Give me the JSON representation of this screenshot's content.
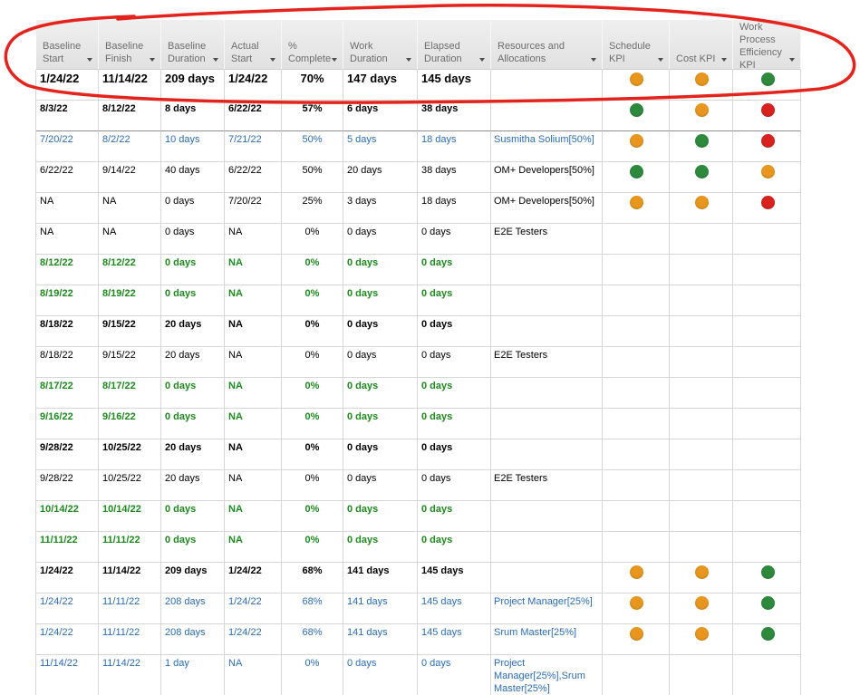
{
  "columns": [
    "Baseline Start",
    "Baseline Finish",
    "Baseline Duration",
    "Actual Start",
    "% Complete",
    "Work Duration",
    "Elapsed Duration",
    "Resources and Allocations",
    "Schedule KPI",
    "Cost KPI",
    "Work Process Efficiency KPI"
  ],
  "kpi_colors": {
    "orange": "#e8961e",
    "green": "#2d8a3d",
    "red": "#d92220"
  },
  "annotation": {
    "color": "#e4231c"
  },
  "rows": [
    {
      "baseline_start": "1/24/22",
      "baseline_finish": "11/14/22",
      "baseline_duration": "209 days",
      "actual_start": "1/24/22",
      "pct_complete": "70%",
      "work_duration": "147 days",
      "elapsed_duration": "145 days",
      "schedule_kpi": "orange",
      "cost_kpi": "orange",
      "wpe_kpi": "green",
      "text_color": "#000000",
      "bold": true
    },
    {
      "baseline_start": "8/3/22",
      "baseline_finish": "8/12/22",
      "baseline_duration": "8 days",
      "actual_start": "6/22/22",
      "pct_complete": "57%",
      "work_duration": "6 days",
      "elapsed_duration": "38 days",
      "schedule_kpi": "green",
      "cost_kpi": "orange",
      "wpe_kpi": "red",
      "text_color": "#000000",
      "bold": true
    },
    {
      "baseline_start": "7/20/22",
      "baseline_finish": "8/2/22",
      "baseline_duration": "10 days",
      "actual_start": "7/21/22",
      "pct_complete": "50%",
      "work_duration": "5 days",
      "elapsed_duration": "18 days",
      "resources": "Susmitha Solium[50%]",
      "schedule_kpi": "orange",
      "cost_kpi": "green",
      "wpe_kpi": "red",
      "text_color": "#2a6cb6",
      "bold": false
    },
    {
      "baseline_start": "6/22/22",
      "baseline_finish": "9/14/22",
      "baseline_duration": "40 days",
      "actual_start": "6/22/22",
      "pct_complete": "50%",
      "work_duration": "20 days",
      "elapsed_duration": "38 days",
      "resources": "OM+ Developers[50%]",
      "schedule_kpi": "green",
      "cost_kpi": "green",
      "wpe_kpi": "orange",
      "text_color": "#000000",
      "bold": false
    },
    {
      "baseline_start": "NA",
      "baseline_finish": "NA",
      "baseline_duration": "0 days",
      "actual_start": "7/20/22",
      "pct_complete": "25%",
      "work_duration": "3 days",
      "elapsed_duration": "18 days",
      "resources": "OM+ Developers[50%]",
      "schedule_kpi": "orange",
      "cost_kpi": "orange",
      "wpe_kpi": "red",
      "text_color": "#000000",
      "bold": false
    },
    {
      "baseline_start": "NA",
      "baseline_finish": "NA",
      "baseline_duration": "0 days",
      "actual_start": "NA",
      "pct_complete": "0%",
      "work_duration": "0 days",
      "elapsed_duration": "0 days",
      "resources": "E2E Testers",
      "text_color": "#000000",
      "bold": false
    },
    {
      "baseline_start": "8/12/22",
      "baseline_finish": "8/12/22",
      "baseline_duration": "0 days",
      "actual_start": "NA",
      "pct_complete": "0%",
      "work_duration": "0 days",
      "elapsed_duration": "0 days",
      "text_color": "#1c8a1c",
      "bold": true
    },
    {
      "baseline_start": "8/19/22",
      "baseline_finish": "8/19/22",
      "baseline_duration": "0 days",
      "actual_start": "NA",
      "pct_complete": "0%",
      "work_duration": "0 days",
      "elapsed_duration": "0 days",
      "text_color": "#1c8a1c",
      "bold": true
    },
    {
      "baseline_start": "8/18/22",
      "baseline_finish": "9/15/22",
      "baseline_duration": "20 days",
      "actual_start": "NA",
      "pct_complete": "0%",
      "work_duration": "0 days",
      "elapsed_duration": "0 days",
      "text_color": "#000000",
      "bold": true
    },
    {
      "baseline_start": "8/18/22",
      "baseline_finish": "9/15/22",
      "baseline_duration": "20 days",
      "actual_start": "NA",
      "pct_complete": "0%",
      "work_duration": "0 days",
      "elapsed_duration": "0 days",
      "resources": "E2E Testers",
      "text_color": "#000000",
      "bold": false
    },
    {
      "baseline_start": "8/17/22",
      "baseline_finish": "8/17/22",
      "baseline_duration": "0 days",
      "actual_start": "NA",
      "pct_complete": "0%",
      "work_duration": "0 days",
      "elapsed_duration": "0 days",
      "text_color": "#1c8a1c",
      "bold": true
    },
    {
      "baseline_start": "9/16/22",
      "baseline_finish": "9/16/22",
      "baseline_duration": "0 days",
      "actual_start": "NA",
      "pct_complete": "0%",
      "work_duration": "0 days",
      "elapsed_duration": "0 days",
      "text_color": "#1c8a1c",
      "bold": true
    },
    {
      "baseline_start": "9/28/22",
      "baseline_finish": "10/25/22",
      "baseline_duration": "20 days",
      "actual_start": "NA",
      "pct_complete": "0%",
      "work_duration": "0 days",
      "elapsed_duration": "0 days",
      "text_color": "#000000",
      "bold": true
    },
    {
      "baseline_start": "9/28/22",
      "baseline_finish": "10/25/22",
      "baseline_duration": "20 days",
      "actual_start": "NA",
      "pct_complete": "0%",
      "work_duration": "0 days",
      "elapsed_duration": "0 days",
      "resources": "E2E Testers",
      "text_color": "#000000",
      "bold": false
    },
    {
      "baseline_start": "10/14/22",
      "baseline_finish": "10/14/22",
      "baseline_duration": "0 days",
      "actual_start": "NA",
      "pct_complete": "0%",
      "work_duration": "0 days",
      "elapsed_duration": "0 days",
      "text_color": "#1c8a1c",
      "bold": true
    },
    {
      "baseline_start": "11/11/22",
      "baseline_finish": "11/11/22",
      "baseline_duration": "0 days",
      "actual_start": "NA",
      "pct_complete": "0%",
      "work_duration": "0 days",
      "elapsed_duration": "0 days",
      "text_color": "#1c8a1c",
      "bold": true
    },
    {
      "baseline_start": "1/24/22",
      "baseline_finish": "11/14/22",
      "baseline_duration": "209 days",
      "actual_start": "1/24/22",
      "pct_complete": "68%",
      "work_duration": "141 days",
      "elapsed_duration": "145 days",
      "schedule_kpi": "orange",
      "cost_kpi": "orange",
      "wpe_kpi": "green",
      "text_color": "#000000",
      "bold": true
    },
    {
      "baseline_start": "1/24/22",
      "baseline_finish": "11/11/22",
      "baseline_duration": "208 days",
      "actual_start": "1/24/22",
      "pct_complete": "68%",
      "work_duration": "141 days",
      "elapsed_duration": "145 days",
      "resources": "Project Manager[25%]",
      "schedule_kpi": "orange",
      "cost_kpi": "orange",
      "wpe_kpi": "green",
      "text_color": "#2a6cb6",
      "bold": false
    },
    {
      "baseline_start": "1/24/22",
      "baseline_finish": "11/11/22",
      "baseline_duration": "208 days",
      "actual_start": "1/24/22",
      "pct_complete": "68%",
      "work_duration": "141 days",
      "elapsed_duration": "145 days",
      "resources": "Srum Master[25%]",
      "schedule_kpi": "orange",
      "cost_kpi": "orange",
      "wpe_kpi": "green",
      "text_color": "#2a6cb6",
      "bold": false
    },
    {
      "baseline_start": "11/14/22",
      "baseline_finish": "11/14/22",
      "baseline_duration": "1 day",
      "actual_start": "NA",
      "pct_complete": "0%",
      "work_duration": "0 days",
      "elapsed_duration": "0 days",
      "resources": "Project Manager[25%],Srum Master[25%]",
      "text_color": "#2a6cb6",
      "bold": false
    }
  ]
}
